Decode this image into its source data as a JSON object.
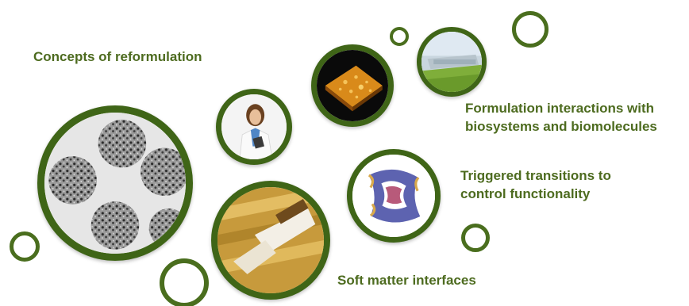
{
  "labels": {
    "concepts": "Concepts of reformulation",
    "formulation_line1": "Formulation interactions with",
    "formulation_line2": "biosystems and biomolecules",
    "triggered_line1": "Triggered transitions to",
    "triggered_line2": "control functionality",
    "soft_matter": "Soft matter interfaces"
  },
  "colors": {
    "ring": "#4a6e1e",
    "bubble_border": "#3f6517",
    "text": "#4d6b1f"
  }
}
